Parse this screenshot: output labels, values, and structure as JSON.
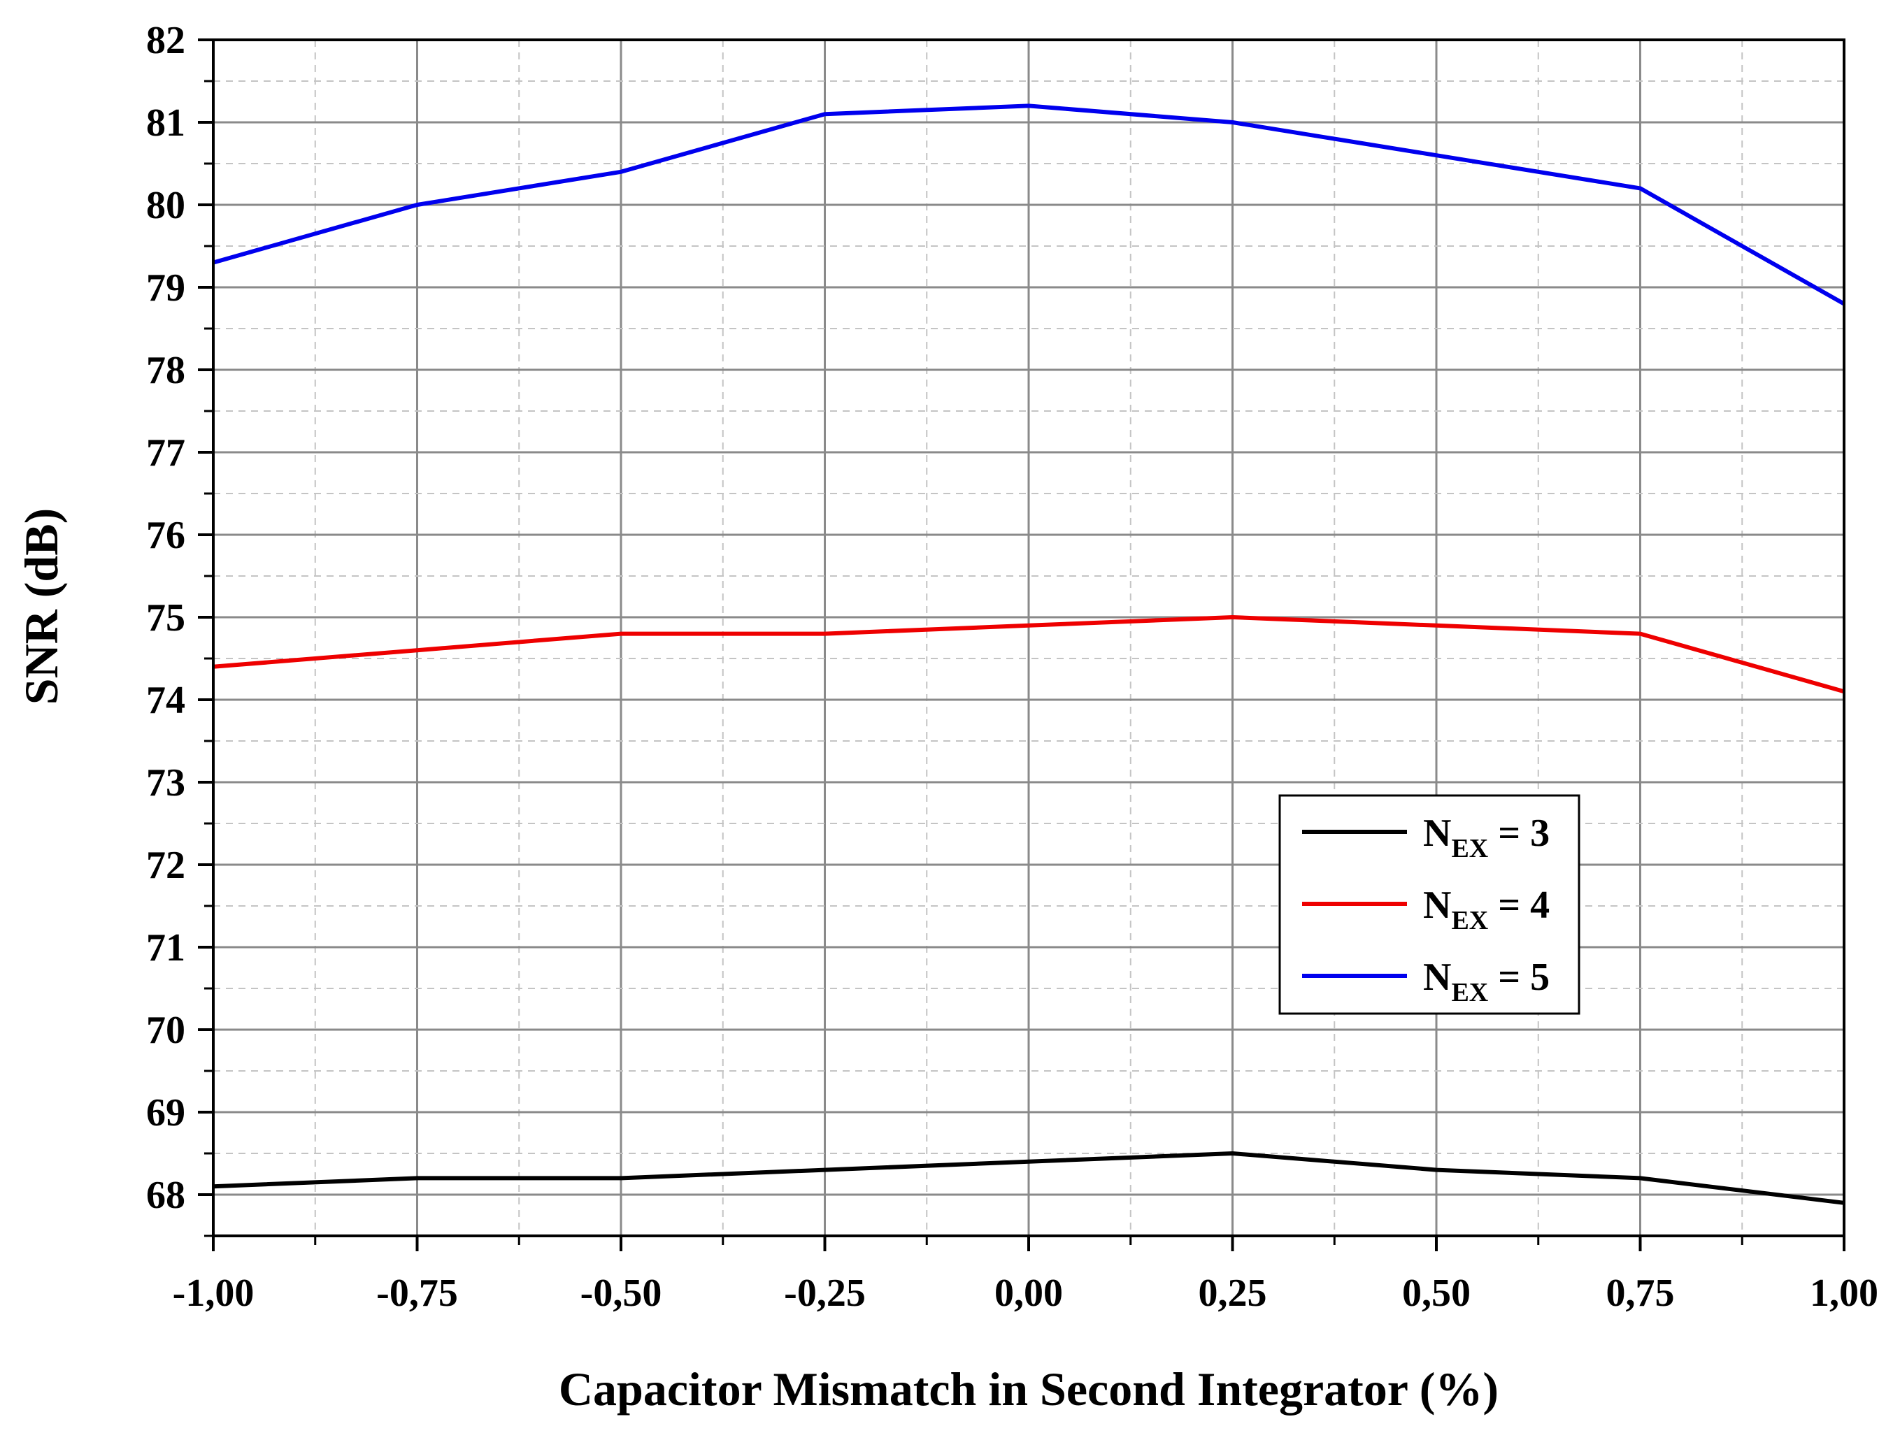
{
  "chart_data": {
    "type": "line",
    "xlabel": "Capacitor Mismatch in Second Integrator (%)",
    "ylabel": "SNR (dB)",
    "xlim": [
      -1.0,
      1.0
    ],
    "ylim": [
      67.5,
      82
    ],
    "x": [
      -1.0,
      -0.75,
      -0.5,
      -0.25,
      0.0,
      0.25,
      0.5,
      0.75,
      1.0
    ],
    "x_tick_labels": [
      "-1,00",
      "-0,75",
      "-0,50",
      "-0,25",
      "0,00",
      "0,25",
      "0,50",
      "0,75",
      "1,00"
    ],
    "y_ticks": [
      68,
      69,
      70,
      71,
      72,
      73,
      74,
      75,
      76,
      77,
      78,
      79,
      80,
      81,
      82
    ],
    "y_tick_labels": [
      "68",
      "69",
      "70",
      "71",
      "72",
      "73",
      "74",
      "75",
      "76",
      "77",
      "78",
      "79",
      "80",
      "81",
      "82"
    ],
    "grid": true,
    "legend_position": "lower-right",
    "series": [
      {
        "name": "N_EX = 3",
        "legend_main": "N",
        "legend_sub": "EX",
        "legend_rest": " = 3",
        "color": "#000000",
        "values": [
          68.1,
          68.2,
          68.2,
          68.3,
          68.4,
          68.5,
          68.3,
          68.2,
          67.9
        ]
      },
      {
        "name": "N_EX = 4",
        "legend_main": "N",
        "legend_sub": "EX",
        "legend_rest": " = 4",
        "color": "#ee0000",
        "values": [
          74.4,
          74.6,
          74.8,
          74.8,
          74.9,
          75.0,
          74.9,
          74.8,
          74.1
        ]
      },
      {
        "name": "N_EX = 5",
        "legend_main": "N",
        "legend_sub": "EX",
        "legend_rest": " = 5",
        "color": "#0000ee",
        "values": [
          79.3,
          80.0,
          80.4,
          81.1,
          81.2,
          81.0,
          80.6,
          80.2,
          78.8
        ]
      }
    ]
  }
}
